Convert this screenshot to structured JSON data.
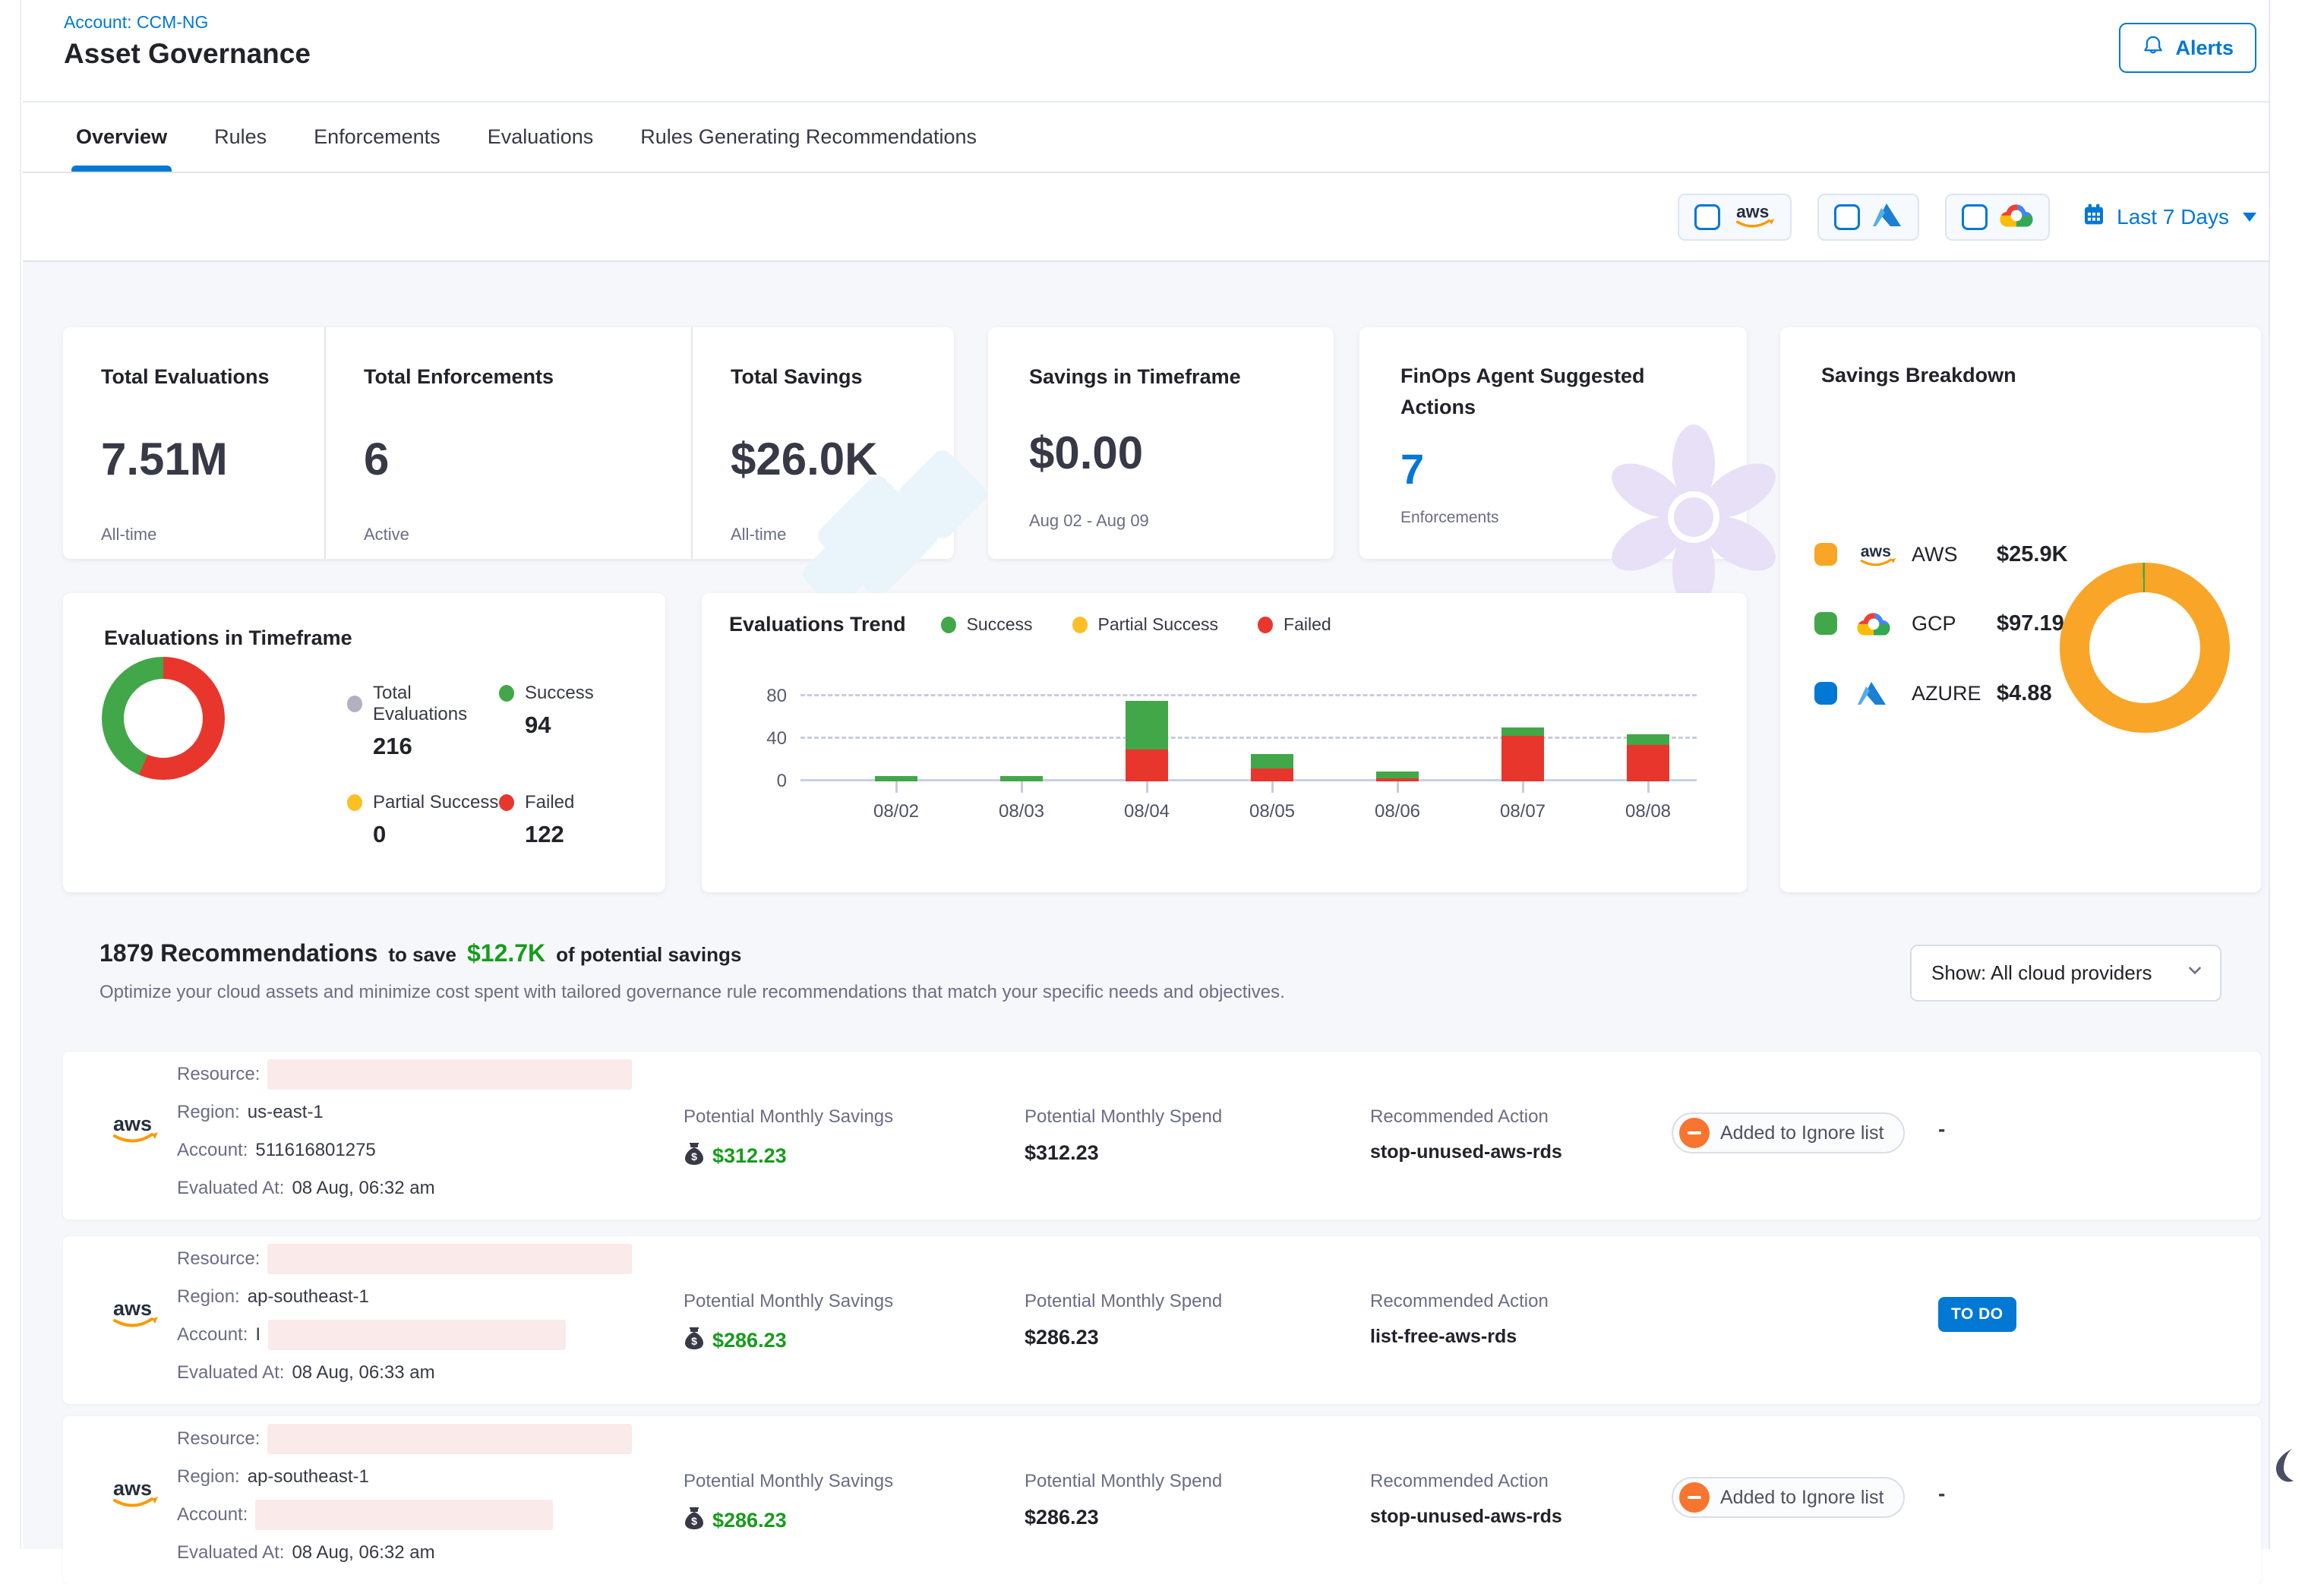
{
  "colors": {
    "accent": "#0278D5",
    "success": "#42A748",
    "failed": "#E8362D",
    "partial": "#FCC026",
    "total_gray": "#B0B1C3",
    "aws_orange": "#F9A527",
    "savings_green": "#169C1C",
    "ignore_orange": "#F7752F",
    "todo_blue": "#0278D5"
  },
  "header": {
    "account": "Account: CCM-NG",
    "title": "Asset Governance",
    "alerts": "Alerts"
  },
  "tabs": [
    {
      "label": "Overview",
      "active": true
    },
    {
      "label": "Rules",
      "active": false
    },
    {
      "label": "Enforcements",
      "active": false
    },
    {
      "label": "Evaluations",
      "active": false
    },
    {
      "label": "Rules Generating Recommendations",
      "active": false
    }
  ],
  "filterbar": {
    "providers": [
      "aws",
      "azure",
      "gcp"
    ],
    "date_range": "Last 7 Days"
  },
  "summary": {
    "cells": [
      {
        "title": "Total Evaluations",
        "value": "7.51M",
        "caption": "All-time"
      },
      {
        "title": "Total Enforcements",
        "value": "6",
        "caption": "Active"
      },
      {
        "title": "Total Savings",
        "value": "$26.0K",
        "caption": "All-time"
      }
    ],
    "timeframe": {
      "title": "Savings in Timeframe",
      "value": "$0.00",
      "caption": "Aug 02 - Aug 09"
    },
    "finops": {
      "title": "FinOps Agent Suggested Actions",
      "value": "7",
      "caption": "Enforcements"
    }
  },
  "savings_breakdown": {
    "title": "Savings Breakdown",
    "items": [
      {
        "provider": "AWS",
        "value": "$25.9K"
      },
      {
        "provider": "GCP",
        "value": "$97.19"
      },
      {
        "provider": "AZURE",
        "value": "$4.88"
      }
    ]
  },
  "evaluations_timeframe": {
    "title": "Evaluations in Timeframe",
    "legend": [
      {
        "label": "Total Evaluations",
        "value": "216"
      },
      {
        "label": "Success",
        "value": "94"
      },
      {
        "label": "Partial Success",
        "value": "0"
      },
      {
        "label": "Failed",
        "value": "122"
      }
    ]
  },
  "trend": {
    "title": "Evaluations Trend",
    "legend": [
      "Success",
      "Partial Success",
      "Failed"
    ]
  },
  "recommendations": {
    "count_title": "1879 Recommendations",
    "to_save": "to save",
    "amount": "$12.7K",
    "suffix": "of potential savings",
    "subtitle": "Optimize your cloud assets and minimize cost spent with tailored governance rule recommendations that match your specific needs and objectives.",
    "show_filter": "Show: All cloud providers",
    "col_savings": "Potential Monthly Savings",
    "col_spend": "Potential Monthly Spend",
    "col_action": "Recommended Action",
    "labels": {
      "resource": "Resource:",
      "region": "Region:",
      "account": "Account:",
      "evaluated": "Evaluated At:"
    },
    "rows": [
      {
        "provider": "AWS",
        "region": "us-east-1",
        "account": "511616801275",
        "evaluated": "08 Aug, 06:32 am",
        "savings": "$312.23",
        "spend": "$312.23",
        "action": "stop-unused-aws-rds",
        "status": "Added to Ignore list",
        "ticket": "-"
      },
      {
        "provider": "AWS",
        "region": "ap-southeast-1",
        "account": "I",
        "evaluated": "08 Aug, 06:33 am",
        "savings": "$286.23",
        "spend": "$286.23",
        "action": "list-free-aws-rds",
        "status": "",
        "ticket": "TO DO"
      },
      {
        "provider": "AWS",
        "region": "ap-southeast-1",
        "account": "",
        "evaluated": "08 Aug, 06:32 am",
        "savings": "$286.23",
        "spend": "$286.23",
        "action": "stop-unused-aws-rds",
        "status": "Added to Ignore list",
        "ticket": "-"
      }
    ]
  },
  "chart_data": [
    {
      "id": "savings_breakdown",
      "type": "pie",
      "donut": true,
      "title": "Savings Breakdown",
      "slices": [
        {
          "label": "AWS",
          "value": 25900,
          "display": "$25.9K",
          "color": "#F9A527"
        },
        {
          "label": "GCP",
          "value": 97.19,
          "display": "$97.19",
          "color": "#42A748"
        },
        {
          "label": "AZURE",
          "value": 4.88,
          "display": "$4.88",
          "color": "#0278D5"
        }
      ],
      "legend_position": "left"
    },
    {
      "id": "evaluations_in_timeframe",
      "type": "pie",
      "donut": true,
      "title": "Evaluations in Timeframe",
      "total": 216,
      "slices": [
        {
          "label": "Failed",
          "value": 122,
          "color": "#E8362D"
        },
        {
          "label": "Success",
          "value": 94,
          "color": "#42A748"
        },
        {
          "label": "Partial Success",
          "value": 0,
          "color": "#FCC026"
        }
      ],
      "legend_position": "right"
    },
    {
      "id": "evaluations_trend",
      "type": "bar",
      "stacked": true,
      "title": "Evaluations Trend",
      "categories": [
        "08/02",
        "08/03",
        "08/04",
        "08/05",
        "08/06",
        "08/07",
        "08/08"
      ],
      "series": [
        {
          "name": "Failed",
          "color": "#E8362D",
          "values": [
            0,
            0,
            30,
            12,
            3,
            43,
            34
          ]
        },
        {
          "name": "Success",
          "color": "#42A748",
          "values": [
            5,
            5,
            46,
            14,
            6,
            8,
            10
          ]
        },
        {
          "name": "Partial Success",
          "color": "#FCC026",
          "values": [
            0,
            0,
            0,
            0,
            0,
            0,
            0
          ]
        }
      ],
      "xlabel": "",
      "ylabel": "",
      "ylim": [
        0,
        80
      ],
      "yticks": [
        0,
        40,
        80
      ],
      "grid": "dashed-horizontal",
      "legend_position": "top"
    }
  ]
}
